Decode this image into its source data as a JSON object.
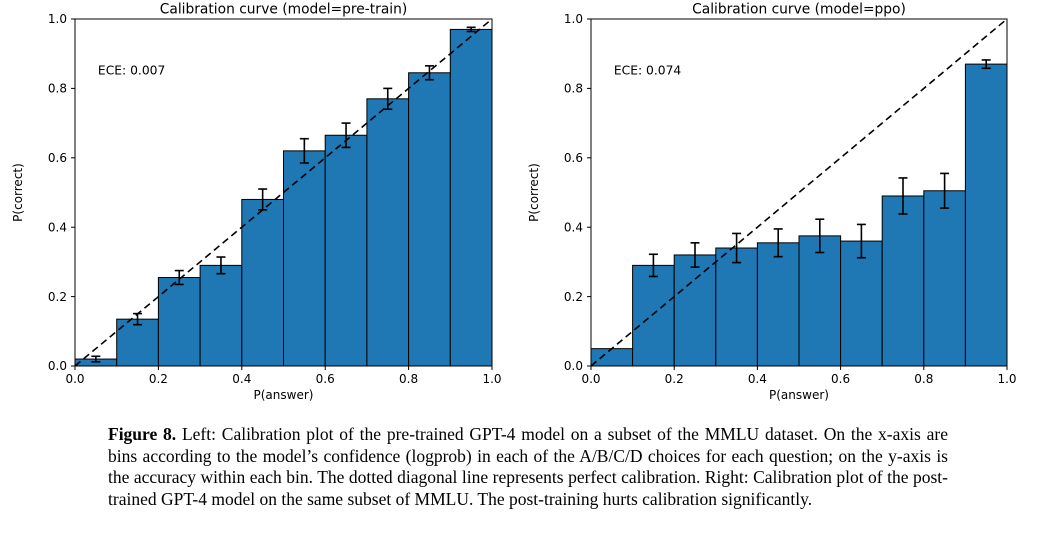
{
  "page": {
    "background": "#ffffff"
  },
  "colors": {
    "bar_fill": "#1f77b4",
    "bar_edge": "#000000",
    "diagonal_line": "#000000",
    "axis": "#000000",
    "text": "#000000"
  },
  "caption": {
    "label": "Figure 8.",
    "text": " Left: Calibration plot of the pre-trained GPT-4 model on a subset of the MMLU dataset. On the x-axis are bins according to the model’s confidence (logprob) in each of the A/B/C/D choices for each question; on the y-axis is the accuracy within each bin. The dotted diagonal line represents perfect calibration. Right: Calibration plot of the post-trained GPT-4 model on the same subset of MMLU. The post-training hurts calibration significantly."
  },
  "chart_data": [
    {
      "type": "bar",
      "title": "Calibration curve (model=pre-train)",
      "annotation": "ECE: 0.007",
      "xlabel": "P(answer)",
      "ylabel": "P(correct)",
      "xlim": [
        0.0,
        1.0
      ],
      "ylim": [
        0.0,
        1.0
      ],
      "xticks": [
        0.0,
        0.2,
        0.4,
        0.6,
        0.8,
        1.0
      ],
      "yticks": [
        0.0,
        0.2,
        0.4,
        0.6,
        0.8,
        1.0
      ],
      "grid": false,
      "legend": null,
      "diagonal_reference_line": true,
      "bin_edges": [
        0.0,
        0.1,
        0.2,
        0.3,
        0.4,
        0.5,
        0.6,
        0.7,
        0.8,
        0.9,
        1.0
      ],
      "values": [
        0.02,
        0.135,
        0.255,
        0.29,
        0.48,
        0.62,
        0.665,
        0.77,
        0.845,
        0.97
      ],
      "errors": [
        0.008,
        0.016,
        0.02,
        0.024,
        0.03,
        0.035,
        0.035,
        0.03,
        0.02,
        0.006
      ]
    },
    {
      "type": "bar",
      "title": "Calibration curve (model=ppo)",
      "annotation": "ECE: 0.074",
      "xlabel": "P(answer)",
      "ylabel": "P(correct)",
      "xlim": [
        0.0,
        1.0
      ],
      "ylim": [
        0.0,
        1.0
      ],
      "xticks": [
        0.0,
        0.2,
        0.4,
        0.6,
        0.8,
        1.0
      ],
      "yticks": [
        0.0,
        0.2,
        0.4,
        0.6,
        0.8,
        1.0
      ],
      "grid": false,
      "legend": null,
      "diagonal_reference_line": true,
      "bin_edges": [
        0.0,
        0.1,
        0.2,
        0.3,
        0.4,
        0.5,
        0.6,
        0.7,
        0.8,
        0.9,
        1.0
      ],
      "values": [
        0.05,
        0.29,
        0.32,
        0.34,
        0.355,
        0.375,
        0.36,
        0.49,
        0.505,
        0.87
      ],
      "errors": [
        0,
        0.032,
        0.035,
        0.042,
        0.04,
        0.048,
        0.048,
        0.052,
        0.05,
        0.012
      ]
    }
  ]
}
